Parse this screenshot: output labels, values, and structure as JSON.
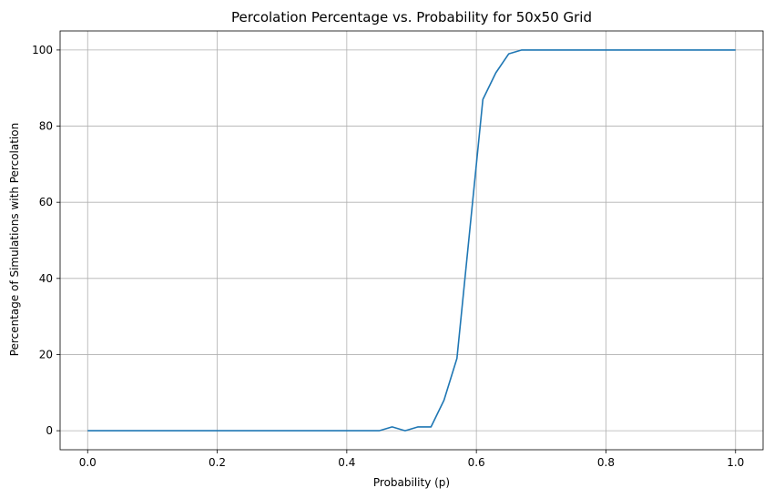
{
  "chart_data": {
    "type": "line",
    "title": "Percolation Percentage vs. Probability for 50x50 Grid",
    "xlabel": "Probability (p)",
    "ylabel": "Percentage of Simulations with Percolation",
    "xlim": [
      -0.0425,
      1.0425
    ],
    "ylim": [
      -5,
      105
    ],
    "xticks": [
      0.0,
      0.2,
      0.4,
      0.6,
      0.8,
      1.0
    ],
    "xtick_labels": [
      "0.0",
      "0.2",
      "0.4",
      "0.6",
      "0.8",
      "1.0"
    ],
    "yticks": [
      0,
      20,
      40,
      60,
      80,
      100
    ],
    "ytick_labels": [
      "0",
      "20",
      "40",
      "60",
      "80",
      "100"
    ],
    "grid": true,
    "series_color": "#1f77b4",
    "series": [
      {
        "x": [
          0.0,
          0.45,
          0.47,
          0.49,
          0.51,
          0.53,
          0.55,
          0.57,
          0.59,
          0.61,
          0.63,
          0.65,
          0.67,
          1.0
        ],
        "y": [
          0,
          0,
          1,
          0,
          1,
          1,
          8,
          19,
          53,
          87,
          94,
          99,
          100,
          100
        ]
      }
    ]
  }
}
